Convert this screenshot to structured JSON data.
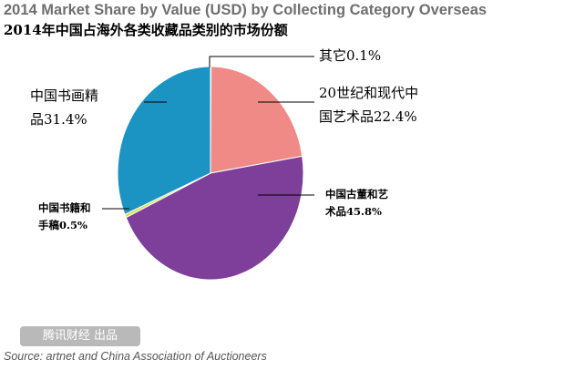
{
  "chart_data": {
    "type": "pie",
    "title": "2014 Market Share by Value (USD) by Collecting Category Overseas",
    "subtitle": "2014年中国占海外各类收藏品类别的市场份额",
    "slices": [
      {
        "label_lines": [
          "其它0.1%"
        ],
        "value": 0.1,
        "color": "#e8e8e8"
      },
      {
        "label_lines": [
          "20世纪和现代中",
          "国艺术品22.4%"
        ],
        "value": 22.4,
        "color": "#f08a86"
      },
      {
        "label_lines": [
          "中国古董和艺",
          "术品45.8%"
        ],
        "value": 45.8,
        "color": "#7d3f99"
      },
      {
        "label_lines": [
          "中国书籍和",
          "手稿0.5%"
        ],
        "value": 0.5,
        "color": "#d7e33f"
      },
      {
        "label_lines": [
          "中国书画精",
          "品31.4%"
        ],
        "value": 31.4,
        "color": "#1c94c3"
      }
    ]
  },
  "credit": "腾讯财经 出品",
  "source": "Source: artnet and China Association of Auctioneers"
}
